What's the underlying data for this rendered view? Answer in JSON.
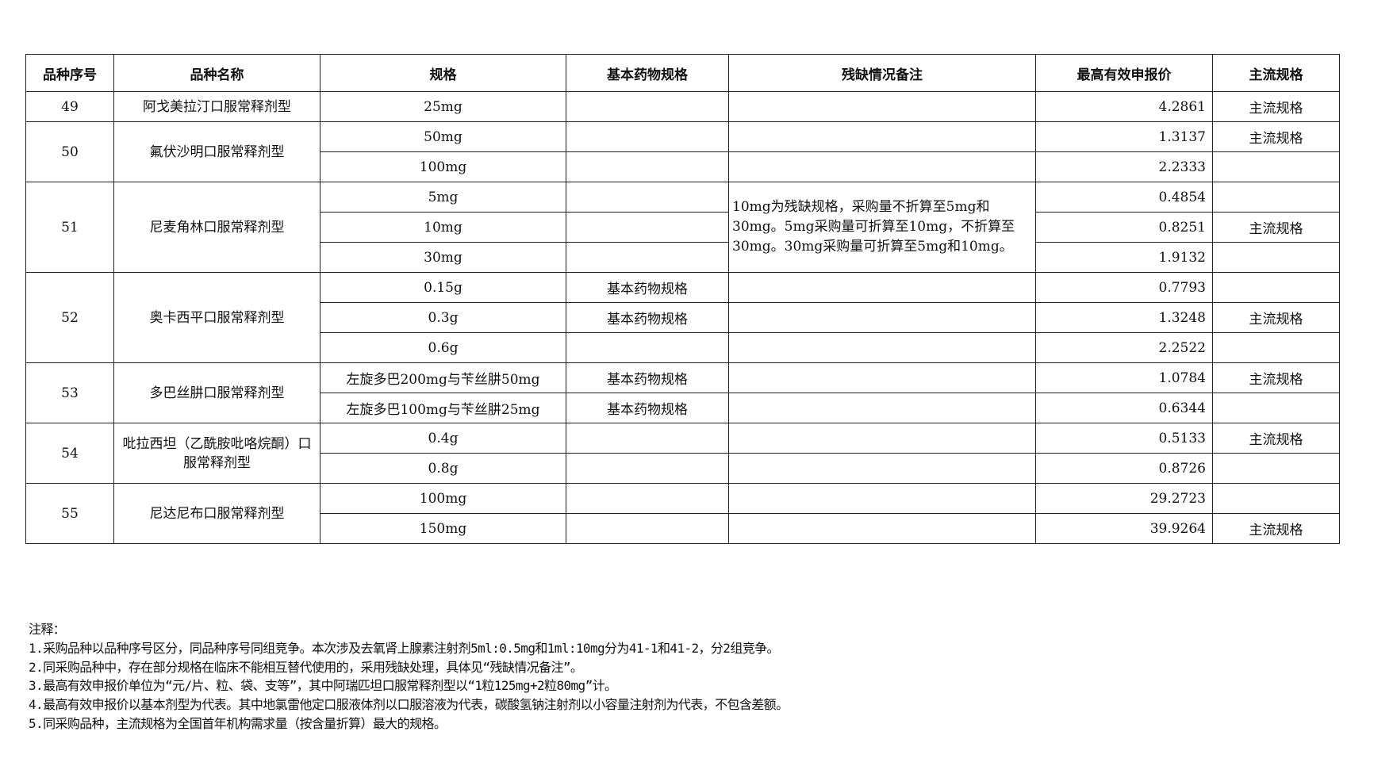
{
  "headers": [
    "品种序号",
    "品种名称",
    "规格",
    "基本药物规格",
    "残缺情况备注",
    "最高有效申报价",
    "主流规格"
  ],
  "groups": [
    {
      "no": "49",
      "name": "阿戈美拉汀口服常释剂型",
      "rows": [
        {
          "spec": "25mg",
          "basic": "",
          "price": "4.2861",
          "main": "主流规格"
        }
      ]
    },
    {
      "no": "50",
      "name": "氟伏沙明口服常释剂型",
      "rows": [
        {
          "spec": "50mg",
          "basic": "",
          "price": "1.3137",
          "main": "主流规格"
        },
        {
          "spec": "100mg",
          "basic": "",
          "price": "2.2333",
          "main": ""
        }
      ]
    },
    {
      "no": "51",
      "name": "尼麦角林口服常释剂型",
      "remark": "10mg为残缺规格，采购量不折算至5mg和30mg。5mg采购量可折算至10mg，不折算至30mg。30mg采购量可折算至5mg和10mg。",
      "rows": [
        {
          "spec": "5mg",
          "basic": "",
          "price": "0.4854",
          "main": ""
        },
        {
          "spec": "10mg",
          "basic": "",
          "price": "0.8251",
          "main": "主流规格"
        },
        {
          "spec": "30mg",
          "basic": "",
          "price": "1.9132",
          "main": ""
        }
      ]
    },
    {
      "no": "52",
      "name": "奥卡西平口服常释剂型",
      "rows": [
        {
          "spec": "0.15g",
          "basic": "基本药物规格",
          "price": "0.7793",
          "main": ""
        },
        {
          "spec": "0.3g",
          "basic": "基本药物规格",
          "price": "1.3248",
          "main": "主流规格"
        },
        {
          "spec": "0.6g",
          "basic": "",
          "price": "2.2522",
          "main": ""
        }
      ]
    },
    {
      "no": "53",
      "name": "多巴丝肼口服常释剂型",
      "rows": [
        {
          "spec": "左旋多巴200mg与苄丝肼50mg",
          "basic": "基本药物规格",
          "price": "1.0784",
          "main": "主流规格"
        },
        {
          "spec": "左旋多巴100mg与苄丝肼25mg",
          "basic": "基本药物规格",
          "price": "0.6344",
          "main": ""
        }
      ]
    },
    {
      "no": "54",
      "name": "吡拉西坦（乙酰胺吡咯烷酮）口服常释剂型",
      "rows": [
        {
          "spec": "0.4g",
          "basic": "",
          "price": "0.5133",
          "main": "主流规格"
        },
        {
          "spec": "0.8g",
          "basic": "",
          "price": "0.8726",
          "main": ""
        }
      ]
    },
    {
      "no": "55",
      "name": "尼达尼布口服常释剂型",
      "rows": [
        {
          "spec": "100mg",
          "basic": "",
          "price": "29.2723",
          "main": ""
        },
        {
          "spec": "150mg",
          "basic": "",
          "price": "39.9264",
          "main": "主流规格"
        }
      ]
    }
  ],
  "notes": {
    "title": "注释：",
    "items": [
      "1.采购品种以品种序号区分，同品种序号同组竞争。本次涉及去氧肾上腺素注射剂5ml:0.5mg和1ml:10mg分为41-1和41-2，分2组竞争。",
      "2.同采购品种中，存在部分规格在临床不能相互替代使用的，采用残缺处理，具体见“残缺情况备注”。",
      "3.最高有效申报价单位为“元/片、粒、袋、支等”，其中阿瑞匹坦口服常释剂型以“1粒125mg+2粒80mg”计。",
      "4.最高有效申报价以基本剂型为代表。其中地氯雷他定口服液体剂以口服溶液为代表，碳酸氢钠注射剂以小容量注射剂为代表，不包含差额。",
      "5.同采购品种，主流规格为全国首年机构需求量（按含量折算）最大的规格。"
    ]
  }
}
